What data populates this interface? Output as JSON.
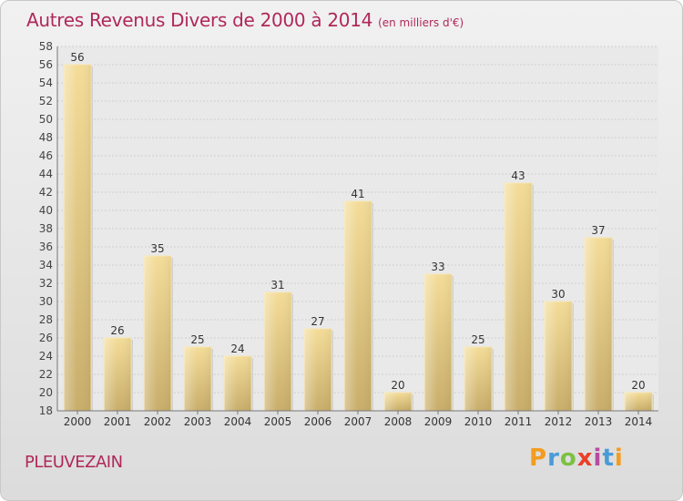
{
  "chart_data": {
    "type": "bar",
    "title": "Autres Revenus Divers de 2000 à 2014",
    "subtitle": "(en milliers d'€)",
    "categories": [
      "2000",
      "2001",
      "2002",
      "2003",
      "2004",
      "2005",
      "2006",
      "2007",
      "2008",
      "2009",
      "2010",
      "2011",
      "2012",
      "2013",
      "2014"
    ],
    "values": [
      56,
      26,
      35,
      25,
      24,
      31,
      27,
      41,
      20,
      33,
      25,
      43,
      30,
      37,
      20
    ],
    "ylim": [
      18,
      58
    ],
    "ytick_step": 2,
    "grid": true,
    "bar_color": "#e3c77f"
  },
  "footer": {
    "place": "PLEUVEZAIN",
    "logo": "Proxiti"
  }
}
